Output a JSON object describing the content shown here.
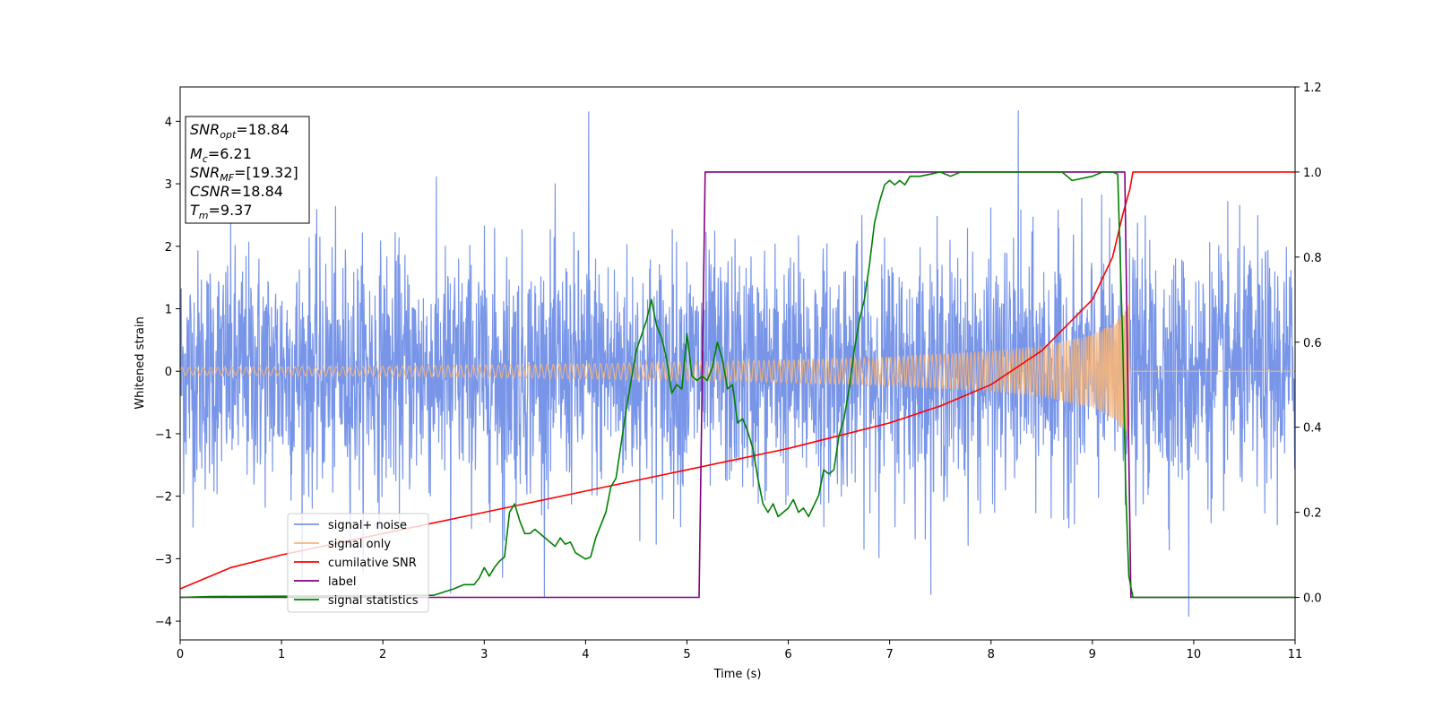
{
  "chart_data": {
    "type": "line",
    "xlabel": "Time (s)",
    "ylabel": "Whitened strain",
    "ylabel_right": "",
    "xlim": [
      0,
      11
    ],
    "ylim": [
      -4.3,
      4.55
    ],
    "ylim_right": [
      -0.1,
      1.2
    ],
    "x_ticks": [
      0,
      1,
      2,
      3,
      4,
      5,
      6,
      7,
      8,
      9,
      10,
      11
    ],
    "y_ticks": [
      -4,
      -3,
      -2,
      -1,
      0,
      1,
      2,
      3,
      4
    ],
    "y_ticks_right": [
      0.0,
      0.2,
      0.4,
      0.6,
      0.8,
      1.0,
      1.2
    ],
    "grid": false,
    "legend_position": "lower-left",
    "annotation": [
      {
        "name": "SNR",
        "sub": "opt",
        "value": "=18.84"
      },
      {
        "name": "M",
        "sub": "c",
        "value": "=6.21"
      },
      {
        "name": "SNR",
        "sub": "MF",
        "value": "=[19.32]"
      },
      {
        "name": "CSNR",
        "sub": "",
        "value": "=18.84"
      },
      {
        "name": "T",
        "sub": "m",
        "value": "=9.37"
      }
    ],
    "series": [
      {
        "name": "signal+ noise",
        "axis": "left",
        "color": "#7895e8",
        "kind": "noise",
        "x_range": [
          0,
          11
        ],
        "std": 0.95,
        "extremes": [
          [
            4.03,
            4.15
          ],
          [
            8.27,
            4.17
          ],
          [
            9.95,
            -3.92
          ],
          [
            2.67,
            -3.55
          ],
          [
            3.18,
            -3.3
          ]
        ]
      },
      {
        "name": "signal only",
        "axis": "left",
        "color": "#f5b57a",
        "kind": "chirp",
        "x_range": [
          0,
          11
        ],
        "merger_time": 9.37,
        "envelope": [
          [
            0,
            0.06
          ],
          [
            2,
            0.08
          ],
          [
            4,
            0.12
          ],
          [
            6,
            0.18
          ],
          [
            7,
            0.23
          ],
          [
            8,
            0.32
          ],
          [
            8.5,
            0.4
          ],
          [
            9,
            0.58
          ],
          [
            9.2,
            0.75
          ],
          [
            9.33,
            1.0
          ],
          [
            9.37,
            1.15
          ]
        ]
      },
      {
        "name": "cumilative SNR",
        "axis": "right",
        "color": "#ff0000",
        "x": [
          0,
          0.5,
          1,
          2,
          3,
          4,
          5,
          6,
          7,
          7.5,
          8,
          8.5,
          9,
          9.2,
          9.3,
          9.37,
          9.4,
          11
        ],
        "values": [
          0.02,
          0.07,
          0.1,
          0.15,
          0.2,
          0.25,
          0.3,
          0.35,
          0.41,
          0.45,
          0.5,
          0.58,
          0.7,
          0.8,
          0.9,
          0.96,
          1.0,
          1.0
        ]
      },
      {
        "name": "label",
        "axis": "right",
        "color": "#800080",
        "x": [
          0,
          5.12,
          5.18,
          9.32,
          9.38,
          11
        ],
        "values": [
          0,
          0,
          1.0,
          1.0,
          0,
          0
        ]
      },
      {
        "name": "signal statistics",
        "axis": "right",
        "color": "#008000",
        "x": [
          0,
          0.3,
          2.5,
          2.7,
          2.8,
          2.9,
          2.95,
          3.0,
          3.05,
          3.1,
          3.15,
          3.2,
          3.25,
          3.3,
          3.35,
          3.4,
          3.45,
          3.5,
          3.6,
          3.7,
          3.75,
          3.8,
          3.85,
          3.9,
          4.0,
          4.05,
          4.1,
          4.2,
          4.25,
          4.3,
          4.4,
          4.5,
          4.6,
          4.65,
          4.7,
          4.75,
          4.8,
          4.85,
          4.9,
          4.95,
          5.0,
          5.05,
          5.1,
          5.15,
          5.2,
          5.25,
          5.3,
          5.35,
          5.4,
          5.45,
          5.5,
          5.55,
          5.6,
          5.65,
          5.7,
          5.75,
          5.8,
          5.85,
          5.9,
          5.95,
          6.0,
          6.05,
          6.1,
          6.15,
          6.2,
          6.3,
          6.35,
          6.4,
          6.45,
          6.5,
          6.55,
          6.6,
          6.65,
          6.7,
          6.75,
          6.8,
          6.85,
          6.9,
          6.95,
          7.0,
          7.05,
          7.1,
          7.15,
          7.2,
          7.3,
          7.4,
          7.5,
          7.6,
          7.7,
          8.0,
          8.5,
          8.7,
          8.8,
          9.0,
          9.1,
          9.2,
          9.25,
          9.3,
          9.33,
          9.36,
          9.4,
          9.5,
          11
        ],
        "values": [
          0.0,
          0.002,
          0.005,
          0.02,
          0.03,
          0.03,
          0.045,
          0.07,
          0.05,
          0.07,
          0.085,
          0.095,
          0.2,
          0.22,
          0.18,
          0.15,
          0.15,
          0.16,
          0.14,
          0.12,
          0.14,
          0.125,
          0.13,
          0.105,
          0.09,
          0.095,
          0.14,
          0.2,
          0.26,
          0.28,
          0.44,
          0.58,
          0.65,
          0.7,
          0.64,
          0.61,
          0.56,
          0.48,
          0.5,
          0.49,
          0.62,
          0.52,
          0.51,
          0.52,
          0.51,
          0.54,
          0.6,
          0.56,
          0.49,
          0.5,
          0.41,
          0.42,
          0.39,
          0.35,
          0.28,
          0.22,
          0.2,
          0.22,
          0.19,
          0.2,
          0.21,
          0.23,
          0.2,
          0.21,
          0.19,
          0.24,
          0.3,
          0.29,
          0.3,
          0.38,
          0.42,
          0.49,
          0.58,
          0.65,
          0.7,
          0.78,
          0.88,
          0.93,
          0.97,
          0.98,
          0.97,
          0.98,
          0.97,
          0.99,
          0.99,
          0.995,
          1.0,
          0.99,
          1.0,
          1.0,
          1.0,
          1.0,
          0.98,
          0.99,
          1.0,
          1.0,
          0.995,
          0.6,
          0.25,
          0.05,
          0.0,
          0.0,
          0.0
        ]
      }
    ]
  }
}
